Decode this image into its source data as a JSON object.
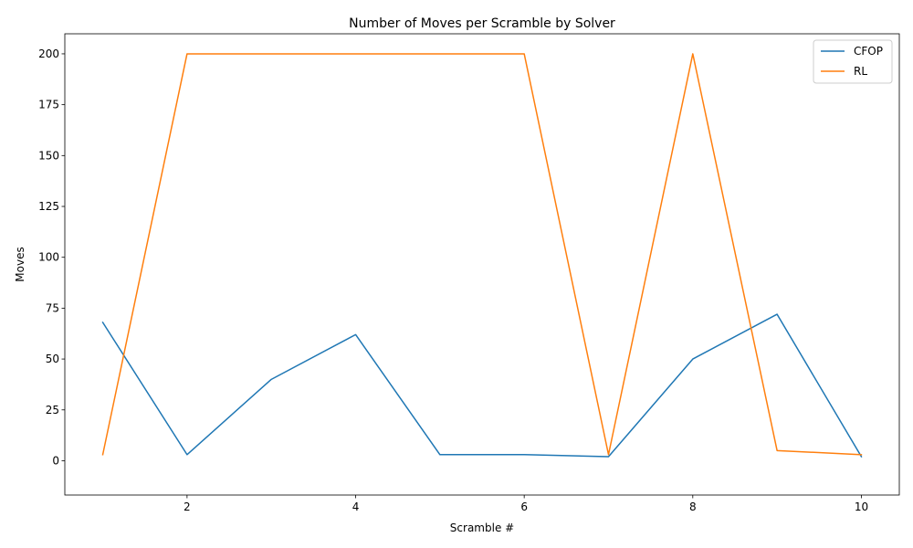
{
  "chart_data": {
    "type": "line",
    "title": "Number of Moves per Scramble by Solver",
    "xlabel": "Scramble #",
    "ylabel": "Moves",
    "x": [
      1,
      2,
      3,
      4,
      5,
      6,
      7,
      8,
      9,
      10
    ],
    "xlim": [
      0.55,
      10.45
    ],
    "ylim": [
      -16.85,
      209.85
    ],
    "xticks": [
      2,
      4,
      6,
      8,
      10
    ],
    "yticks": [
      0,
      25,
      50,
      75,
      100,
      125,
      150,
      175,
      200
    ],
    "grid": false,
    "legend_position": "top-right",
    "series": [
      {
        "name": "CFOP",
        "color": "#1f77b4",
        "values": [
          68,
          3,
          40,
          62,
          3,
          3,
          2,
          50,
          72,
          2
        ]
      },
      {
        "name": "RL",
        "color": "#ff7f0e",
        "values": [
          3,
          200,
          200,
          200,
          200,
          200,
          3,
          200,
          5,
          3
        ]
      }
    ]
  }
}
